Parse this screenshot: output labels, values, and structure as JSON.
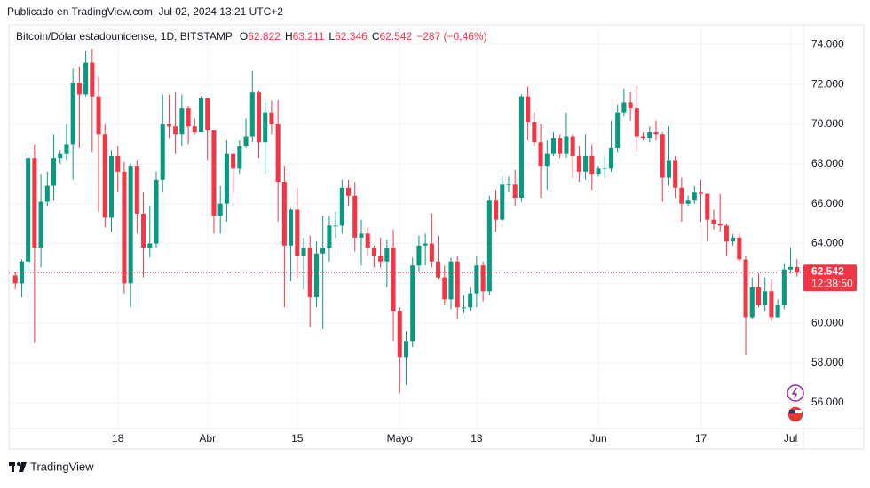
{
  "published": "Publicado en TradingView.com, Jul 02, 2024 13:21 UTC+2",
  "brand": "TradingView",
  "chart_data": {
    "type": "candlestick",
    "legend": {
      "symbol": "Bitcoin/Dólar estadounidense, 1D, BITSTAMP",
      "items": [
        {
          "key": "O",
          "value": "62.822"
        },
        {
          "key": "H",
          "value": "63.211"
        },
        {
          "key": "L",
          "value": "62.346"
        },
        {
          "key": "C",
          "value": "62.542"
        }
      ],
      "change": "−287 (−0,46%)"
    },
    "up_color": "#089981",
    "down_color": "#f23645",
    "x": [
      "2024-03-02",
      "2024-03-03",
      "2024-03-04",
      "2024-03-05",
      "2024-03-06",
      "2024-03-07",
      "2024-03-08",
      "2024-03-09",
      "2024-03-10",
      "2024-03-11",
      "2024-03-12",
      "2024-03-13",
      "2024-03-14",
      "2024-03-15",
      "2024-03-16",
      "2024-03-17",
      "2024-03-18",
      "2024-03-19",
      "2024-03-20",
      "2024-03-21",
      "2024-03-22",
      "2024-03-23",
      "2024-03-24",
      "2024-03-25",
      "2024-03-26",
      "2024-03-27",
      "2024-03-28",
      "2024-03-29",
      "2024-03-30",
      "2024-03-31",
      "2024-04-01",
      "2024-04-02",
      "2024-04-03",
      "2024-04-04",
      "2024-04-05",
      "2024-04-06",
      "2024-04-07",
      "2024-04-08",
      "2024-04-09",
      "2024-04-10",
      "2024-04-11",
      "2024-04-12",
      "2024-04-13",
      "2024-04-14",
      "2024-04-15",
      "2024-04-16",
      "2024-04-17",
      "2024-04-18",
      "2024-04-19",
      "2024-04-20",
      "2024-04-21",
      "2024-04-22",
      "2024-04-23",
      "2024-04-24",
      "2024-04-25",
      "2024-04-26",
      "2024-04-27",
      "2024-04-28",
      "2024-04-29",
      "2024-04-30",
      "2024-05-01",
      "2024-05-02",
      "2024-05-03",
      "2024-05-04",
      "2024-05-05",
      "2024-05-06",
      "2024-05-07",
      "2024-05-08",
      "2024-05-09",
      "2024-05-10",
      "2024-05-11",
      "2024-05-12",
      "2024-05-13",
      "2024-05-14",
      "2024-05-15",
      "2024-05-16",
      "2024-05-17",
      "2024-05-18",
      "2024-05-19",
      "2024-05-20",
      "2024-05-21",
      "2024-05-22",
      "2024-05-23",
      "2024-05-24",
      "2024-05-25",
      "2024-05-26",
      "2024-05-27",
      "2024-05-28",
      "2024-05-29",
      "2024-05-30",
      "2024-05-31",
      "2024-06-01",
      "2024-06-02",
      "2024-06-03",
      "2024-06-04",
      "2024-06-05",
      "2024-06-06",
      "2024-06-07",
      "2024-06-08",
      "2024-06-09",
      "2024-06-10",
      "2024-06-11",
      "2024-06-12",
      "2024-06-13",
      "2024-06-14",
      "2024-06-15",
      "2024-06-16",
      "2024-06-17",
      "2024-06-18",
      "2024-06-19",
      "2024-06-20",
      "2024-06-21",
      "2024-06-22",
      "2024-06-23",
      "2024-06-24",
      "2024-06-25",
      "2024-06-26",
      "2024-06-27",
      "2024-06-28",
      "2024-06-29",
      "2024-06-30",
      "2024-07-01",
      "2024-07-02"
    ],
    "open": [
      62400,
      62000,
      63100,
      68300,
      63800,
      66100,
      66900,
      68300,
      68500,
      69000,
      72100,
      71500,
      73100,
      71400,
      69500,
      65300,
      68400,
      67600,
      62000,
      67900,
      65500,
      63800,
      64000,
      67200,
      70000,
      69900,
      69500,
      70800,
      69900,
      69600,
      71300,
      69700,
      65400,
      66000,
      68500,
      67800,
      68900,
      69400,
      71600,
      69100,
      70600,
      70000,
      67100,
      63900,
      65700,
      63400,
      63800,
      61300,
      63500,
      63800,
      64900,
      64900,
      66800,
      66400,
      64300,
      64500,
      63800,
      63400,
      63100,
      63800,
      60600,
      58300,
      59100,
      62900,
      63900,
      64000,
      63100,
      62300,
      61200,
      63100,
      60800,
      60800,
      61500,
      62900,
      61600,
      66200,
      65200,
      67000,
      67000,
      66300,
      71400,
      70100,
      69100,
      67900,
      68500,
      69300,
      68500,
      69400,
      68400,
      67600,
      68400,
      67500,
      67800,
      67800,
      68800,
      70600,
      71100,
      70800,
      69400,
      69300,
      69600,
      69500,
      67300,
      68200,
      66800,
      66000,
      66200,
      66600,
      66500,
      65200,
      65000,
      64900,
      64100,
      64300,
      63200,
      60300,
      61800,
      60900,
      61600,
      60300,
      60900,
      62700,
      62822
    ],
    "high": [
      62600,
      63200,
      68500,
      69000,
      67500,
      67600,
      69500,
      68700,
      70000,
      72800,
      72900,
      73700,
      73800,
      72400,
      70000,
      68700,
      68900,
      68100,
      68000,
      68200,
      66600,
      65900,
      67600,
      71500,
      71500,
      71600,
      71500,
      70900,
      70300,
      71400,
      71300,
      69700,
      66900,
      69200,
      68700,
      69200,
      70300,
      72700,
      71700,
      71100,
      71200,
      71200,
      67900,
      65800,
      66800,
      64300,
      64400,
      64100,
      65400,
      65400,
      65600,
      67200,
      67200,
      67100,
      65200,
      64800,
      63900,
      64300,
      64200,
      64700,
      60800,
      59600,
      63300,
      64400,
      64500,
      65500,
      64400,
      62900,
      63300,
      63400,
      61400,
      61800,
      63400,
      63100,
      66400,
      66700,
      67400,
      67400,
      67700,
      71500,
      71900,
      70600,
      70000,
      69200,
      69600,
      69500,
      70600,
      69500,
      68900,
      69500,
      69000,
      67900,
      68400,
      70200,
      71000,
      71800,
      71600,
      71900,
      69600,
      69900,
      70200,
      69600,
      69900,
      68400,
      67300,
      66400,
      66900,
      67200,
      66500,
      65700,
      66500,
      65000,
      64500,
      64500,
      63400,
      62300,
      62500,
      62300,
      62200,
      61200,
      63000,
      63800,
      63211
    ],
    "low": [
      61700,
      61300,
      62500,
      59000,
      62800,
      65900,
      66200,
      68000,
      68200,
      67200,
      68800,
      71400,
      68600,
      65600,
      64800,
      64600,
      66600,
      61500,
      60800,
      64500,
      62300,
      63300,
      63800,
      66600,
      69300,
      68500,
      68900,
      69000,
      69500,
      69600,
      68200,
      64500,
      64500,
      65100,
      66500,
      67500,
      68800,
      69100,
      68300,
      67500,
      69500,
      65100,
      60800,
      62100,
      62300,
      61700,
      59800,
      60800,
      59700,
      63100,
      64300,
      64500,
      65900,
      63600,
      62900,
      63400,
      62800,
      62800,
      61800,
      59100,
      56500,
      56900,
      58800,
      62600,
      62900,
      62800,
      62200,
      60900,
      60700,
      60200,
      60500,
      60600,
      60800,
      61100,
      61400,
      64600,
      65100,
      66600,
      65900,
      66100,
      69200,
      68900,
      66300,
      66700,
      68400,
      68300,
      68300,
      67300,
      67100,
      67200,
      66700,
      67400,
      67300,
      67600,
      68600,
      70400,
      70200,
      68600,
      69200,
      69100,
      69200,
      66100,
      66900,
      66300,
      65100,
      65900,
      66000,
      65100,
      64100,
      64700,
      64600,
      63400,
      63900,
      63100,
      58400,
      60200,
      60800,
      60600,
      60100,
      60300,
      60700,
      62500,
      62346
    ],
    "close": [
      62000,
      63100,
      68300,
      63800,
      66100,
      66900,
      68300,
      68500,
      69000,
      72100,
      71500,
      73100,
      71400,
      69500,
      65300,
      68400,
      67600,
      62000,
      67900,
      65500,
      63800,
      64000,
      67200,
      70000,
      69900,
      69500,
      70800,
      69900,
      69600,
      71300,
      69700,
      65400,
      66000,
      68500,
      67800,
      68900,
      69400,
      71600,
      69100,
      70600,
      70000,
      67100,
      63900,
      65700,
      63400,
      63800,
      61300,
      63500,
      63800,
      64900,
      64900,
      66800,
      66400,
      64300,
      64500,
      63800,
      63400,
      63100,
      63800,
      60600,
      58300,
      59100,
      62900,
      63900,
      64000,
      63100,
      62300,
      61200,
      63100,
      60800,
      60800,
      61500,
      62900,
      61600,
      66200,
      65200,
      67000,
      67000,
      66300,
      71400,
      70100,
      69100,
      67900,
      68500,
      69300,
      68500,
      69400,
      68400,
      67600,
      68400,
      67500,
      67800,
      67800,
      68800,
      70600,
      71100,
      70800,
      69400,
      69300,
      69600,
      69500,
      67300,
      68200,
      66800,
      66000,
      66200,
      66600,
      66500,
      65200,
      65000,
      64900,
      64100,
      64300,
      63200,
      60300,
      61800,
      60900,
      61600,
      60300,
      60900,
      62700,
      62829,
      62542
    ],
    "price_line": {
      "value": 62542,
      "label": "62.542",
      "countdown": "12:38:50"
    },
    "xlim": [
      "2024-03-01",
      "2024-07-03"
    ],
    "xticks": [
      {
        "value": "2024-03-18",
        "label": "18"
      },
      {
        "value": "2024-04-01",
        "label": "Abr"
      },
      {
        "value": "2024-04-15",
        "label": "15"
      },
      {
        "value": "2024-05-01",
        "label": "Mayo"
      },
      {
        "value": "2024-05-13",
        "label": "13"
      },
      {
        "value": "2024-06-01",
        "label": "Jun"
      },
      {
        "value": "2024-06-17",
        "label": "17"
      },
      {
        "value": "2024-07-01",
        "label": "Jul"
      }
    ],
    "ylim": [
      54700,
      75000
    ],
    "yticks": [
      {
        "value": 56000,
        "label": "56.000"
      },
      {
        "value": 58000,
        "label": "58.000"
      },
      {
        "value": 60000,
        "label": "60.000"
      },
      {
        "value": 62000,
        "label": "62.000"
      },
      {
        "value": 64000,
        "label": "64.000"
      },
      {
        "value": 66000,
        "label": "66.000"
      },
      {
        "value": 68000,
        "label": "68.000"
      },
      {
        "value": 70000,
        "label": "70.000"
      },
      {
        "value": 72000,
        "label": "72.000"
      },
      {
        "value": 74000,
        "label": "74.000"
      }
    ],
    "grid": true
  }
}
